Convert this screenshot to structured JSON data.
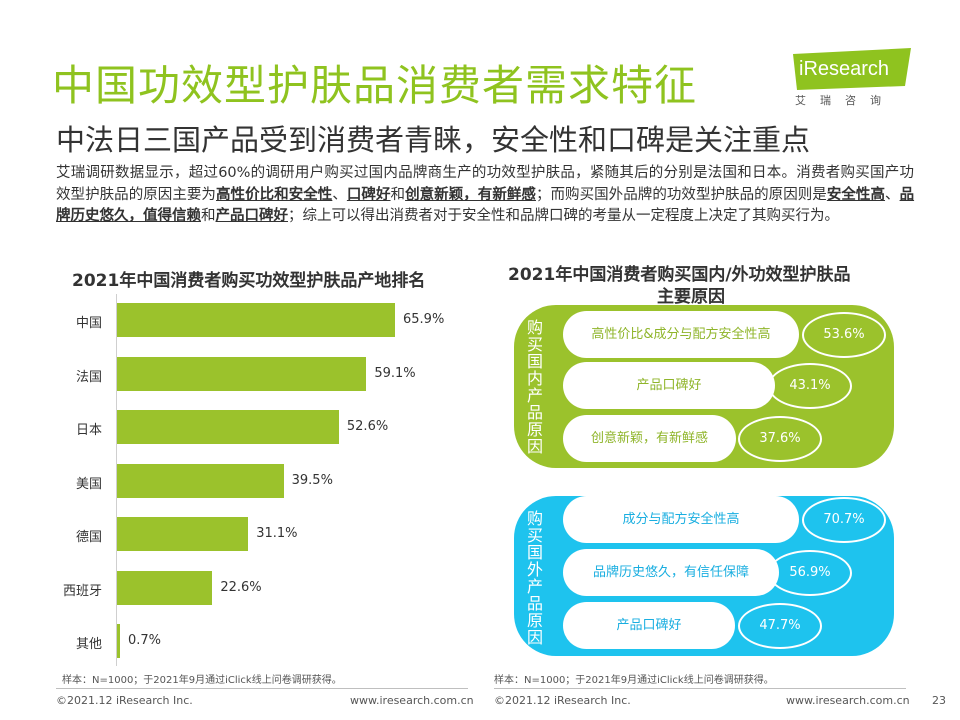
{
  "header": {
    "title": "中国功效型护肤品消费者需求特征",
    "subtitle": "中法日三国产品受到消费者青睐，安全性和口碑是关注重点",
    "logo_text": "iResearch",
    "logo_cn": "艾瑞咨询"
  },
  "intro": {
    "p1": "艾瑞调研数据显示，超过60%的调研用户购买过国内品牌商生产的功效型护肤品，紧随其后的分别是法国和日本。消费者购买国产功效型护肤品的原因主要为",
    "b1": "高性价比和安全性",
    "s1": "、",
    "b2": "口碑好",
    "s2": "和",
    "b3": "创意新颖，有新鲜感",
    "p2": "；而购买国外品牌的功效型护肤品的原因则是",
    "b4": "安全性高",
    "s3": "、",
    "b5": "品牌历史悠久，值得信赖",
    "s4": "和",
    "b6": "产品口碑好",
    "p3": "；综上可以得出消费者对于安全性和品牌口碑的考量从一定程度上决定了其购买行为。"
  },
  "chart_data": [
    {
      "type": "bar",
      "orientation": "horizontal",
      "title": "2021年中国消费者购买功效型护肤品产地排名",
      "categories": [
        "中国",
        "法国",
        "日本",
        "美国",
        "德国",
        "西班牙",
        "其他"
      ],
      "values": [
        65.9,
        59.1,
        52.6,
        39.5,
        31.1,
        22.6,
        0.7
      ],
      "value_labels": [
        "65.9%",
        "59.1%",
        "52.6%",
        "39.5%",
        "31.1%",
        "22.6%",
        "0.7%"
      ],
      "unit": "%",
      "xlim": [
        0,
        70
      ],
      "color": "#9bc22c",
      "grid": false
    },
    {
      "type": "table",
      "title_line1": "2021年中国消费者购买国内/外功效型护肤品",
      "title_line2": "主要原因",
      "groups": [
        {
          "label": "购买国内产品原因",
          "color": "#9bc22c",
          "reasons": [
            {
              "reason": "高性价比&成分与配方安全性高",
              "value": 53.6,
              "label": "53.6%"
            },
            {
              "reason": "产品口碑好",
              "value": 43.1,
              "label": "43.1%"
            },
            {
              "reason": "创意新颖，有新鲜感",
              "value": 37.6,
              "label": "37.6%"
            }
          ]
        },
        {
          "label": "购买国外产品原因",
          "color": "#1ec3ee",
          "reasons": [
            {
              "reason": "成分与配方安全性高",
              "value": 70.7,
              "label": "70.7%"
            },
            {
              "reason": "品牌历史悠久，有信任保障",
              "value": 56.9,
              "label": "56.9%"
            },
            {
              "reason": "产品口碑好",
              "value": 47.7,
              "label": "47.7%"
            }
          ]
        }
      ]
    }
  ],
  "footnotes": {
    "left": "样本：N=1000；于2021年9月通过iClick线上问卷调研获得。",
    "right": "样本：N=1000；于2021年9月通过iClick线上问卷调研获得。"
  },
  "footer": {
    "copyright_left": "©2021.12 iResearch Inc.",
    "url_left": "www.iresearch.com.cn",
    "copyright_right": "©2021.12 iResearch Inc.",
    "url_right": "www.iresearch.com.cn",
    "page_number": "23"
  },
  "colors": {
    "title": "#8fc31f",
    "green": "#9bc22c",
    "cyan": "#1ec3ee",
    "domestic_text": "#8fb52a",
    "foreign_text": "#19aee0"
  }
}
